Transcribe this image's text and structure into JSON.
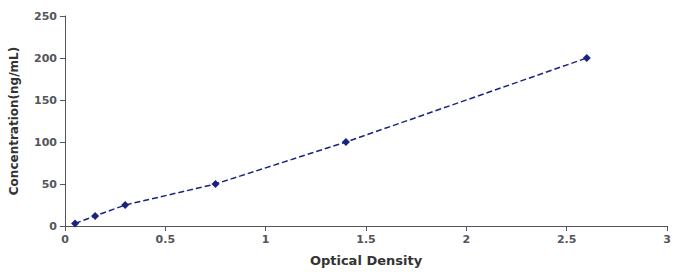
{
  "chart_data": {
    "type": "line",
    "x": [
      0.05,
      0.15,
      0.3,
      0.75,
      1.4,
      2.6
    ],
    "values": [
      3,
      12,
      25,
      50,
      100,
      200
    ],
    "color": "#1a237e",
    "marker": "diamond",
    "line_style": "dashed",
    "xlabel": "Optical Density",
    "ylabel": "Concentration(ng/mL)",
    "xlim": [
      0,
      3
    ],
    "ylim": [
      0,
      250
    ],
    "xticks": [
      0,
      0.5,
      1,
      1.5,
      2,
      2.5,
      3
    ],
    "yticks": [
      0,
      50,
      100,
      150,
      200,
      250
    ],
    "grid": false
  }
}
